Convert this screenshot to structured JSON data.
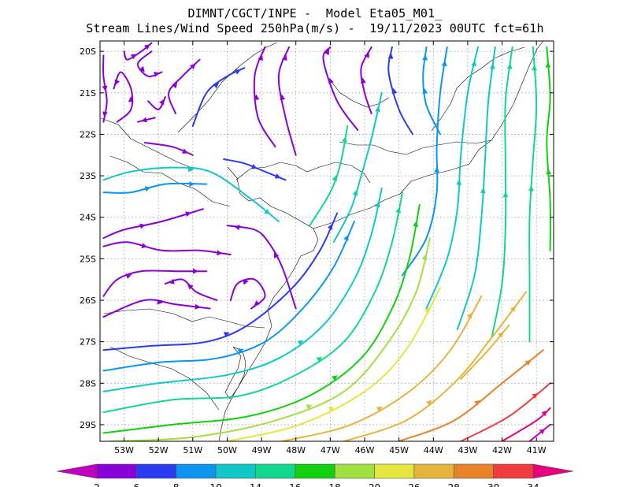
{
  "title_line1": "DIMNT/CGCT/INPE -  Model Eta05_M01_",
  "title_line2": "Stream Lines/Wind Speed 250hPa(m/s) -  19/11/2023 00UTC fct=61h",
  "chart_data": {
    "type": "streamline",
    "title": "Stream Lines/Wind Speed 250hPa(m/s) -  19/11/2023 00UTC fct=61h",
    "x_range": [
      -53.7,
      -40.5
    ],
    "y_range": [
      -29.4,
      -19.75
    ],
    "x_ticks": [
      -53,
      -52,
      -51,
      -50,
      -49,
      -48,
      -47,
      -46,
      -45,
      -44,
      -43,
      -42,
      -41
    ],
    "y_ticks": [
      -20,
      -21,
      -22,
      -23,
      -24,
      -25,
      -26,
      -27,
      -28,
      -29
    ],
    "x_tick_labels": [
      "53W",
      "52W",
      "51W",
      "50W",
      "49W",
      "48W",
      "47W",
      "46W",
      "45W",
      "44W",
      "43W",
      "42W",
      "41W"
    ],
    "y_tick_labels": [
      "20S",
      "21S",
      "22S",
      "23S",
      "24S",
      "25S",
      "26S",
      "27S",
      "28S",
      "29S"
    ],
    "grid": true,
    "colorbar": {
      "labels": [
        "2",
        "6",
        "8",
        "10",
        "14",
        "16",
        "18",
        "20",
        "26",
        "28",
        "30",
        "34"
      ],
      "colors": [
        "#bf00bf",
        "#8a00d6",
        "#2b3cf0",
        "#0a96f0",
        "#10c8c8",
        "#10d88c",
        "#10d010",
        "#a0e040",
        "#e6e640",
        "#e6b43c",
        "#e88228",
        "#f03c3c",
        "#e6007e"
      ]
    },
    "streamlines": [
      {
        "speed_class": 1,
        "points": [
          [
            -53.6,
            -20.1
          ],
          [
            -53.6,
            -20.6
          ],
          [
            -53.5,
            -21.2
          ],
          [
            -53.6,
            -21.7
          ]
        ]
      },
      {
        "speed_class": 1,
        "points": [
          [
            -53.2,
            -21.7
          ],
          [
            -52.8,
            -21.4
          ],
          [
            -52.8,
            -20.9
          ],
          [
            -53.1,
            -20.5
          ],
          [
            -53.3,
            -20.9
          ]
        ]
      },
      {
        "speed_class": 1,
        "points": [
          [
            -52.2,
            -20.0
          ],
          [
            -52.6,
            -20.3
          ],
          [
            -52.3,
            -20.6
          ],
          [
            -51.9,
            -20.5
          ]
        ]
      },
      {
        "speed_class": 1,
        "points": [
          [
            -52.3,
            -21.2
          ],
          [
            -52.0,
            -21.4
          ],
          [
            -51.8,
            -21.1
          ]
        ]
      },
      {
        "speed_class": 1,
        "points": [
          [
            -52.1,
            -21.6
          ],
          [
            -52.6,
            -21.7
          ]
        ]
      },
      {
        "speed_class": 1,
        "points": [
          [
            -52.4,
            -22.2
          ],
          [
            -51.6,
            -22.3
          ],
          [
            -51.0,
            -22.5
          ]
        ]
      },
      {
        "speed_class": 1,
        "points": [
          [
            -53.0,
            -20.0
          ],
          [
            -52.9,
            -20.2
          ],
          [
            -52.5,
            -20.0
          ],
          [
            -52.2,
            -19.8
          ]
        ]
      },
      {
        "speed_class": 1,
        "points": [
          [
            -51.5,
            -21.5
          ],
          [
            -51.7,
            -21.0
          ],
          [
            -51.3,
            -20.6
          ],
          [
            -50.8,
            -20.2
          ]
        ]
      },
      {
        "speed_class": 2,
        "points": [
          [
            -51.0,
            -21.8
          ],
          [
            -50.6,
            -21.0
          ],
          [
            -50.0,
            -20.6
          ],
          [
            -49.5,
            -20.4
          ]
        ]
      },
      {
        "speed_class": 1,
        "points": [
          [
            -48.6,
            -22.3
          ],
          [
            -49.1,
            -21.6
          ],
          [
            -49.2,
            -20.6
          ],
          [
            -48.9,
            -19.9
          ]
        ]
      },
      {
        "speed_class": 1,
        "points": [
          [
            -48.0,
            -22.5
          ],
          [
            -48.3,
            -21.6
          ],
          [
            -48.5,
            -20.6
          ],
          [
            -48.2,
            -19.9
          ]
        ]
      },
      {
        "speed_class": 1,
        "points": [
          [
            -46.2,
            -21.9
          ],
          [
            -46.8,
            -21.2
          ],
          [
            -47.2,
            -20.2
          ],
          [
            -47.0,
            -19.9
          ]
        ]
      },
      {
        "speed_class": 1,
        "points": [
          [
            -45.8,
            -21.5
          ],
          [
            -46.0,
            -21.0
          ],
          [
            -46.1,
            -20.4
          ],
          [
            -45.8,
            -19.9
          ]
        ]
      },
      {
        "speed_class": 2,
        "points": [
          [
            -44.6,
            -22.0
          ],
          [
            -45.0,
            -21.4
          ],
          [
            -45.3,
            -20.5
          ],
          [
            -45.2,
            -19.9
          ]
        ]
      },
      {
        "speed_class": 3,
        "points": [
          [
            -43.8,
            -22.0
          ],
          [
            -44.2,
            -21.3
          ],
          [
            -44.3,
            -20.6
          ],
          [
            -44.2,
            -19.9
          ]
        ]
      },
      {
        "speed_class": 3,
        "points": [
          [
            -44.9,
            -25.4
          ],
          [
            -44.2,
            -24.5
          ],
          [
            -43.9,
            -23.4
          ],
          [
            -43.9,
            -22.3
          ],
          [
            -43.8,
            -21.0
          ],
          [
            -43.6,
            -19.9
          ]
        ]
      },
      {
        "speed_class": 4,
        "points": [
          [
            -44.2,
            -26.2
          ],
          [
            -43.6,
            -25.0
          ],
          [
            -43.3,
            -23.8
          ],
          [
            -43.2,
            -22.5
          ],
          [
            -43.0,
            -21.0
          ],
          [
            -42.7,
            -19.9
          ]
        ]
      },
      {
        "speed_class": 4,
        "points": [
          [
            -43.3,
            -26.7
          ],
          [
            -42.8,
            -25.4
          ],
          [
            -42.6,
            -24.0
          ],
          [
            -42.5,
            -22.7
          ],
          [
            -42.4,
            -21.2
          ],
          [
            -42.2,
            -19.9
          ]
        ]
      },
      {
        "speed_class": 5,
        "points": [
          [
            -42.3,
            -26.9
          ],
          [
            -42.0,
            -25.6
          ],
          [
            -41.9,
            -24.2
          ],
          [
            -41.9,
            -22.7
          ],
          [
            -41.9,
            -21.2
          ],
          [
            -41.7,
            -19.9
          ]
        ]
      },
      {
        "speed_class": 5,
        "points": [
          [
            -41.2,
            -27.0
          ],
          [
            -41.2,
            -25.6
          ],
          [
            -41.2,
            -24.0
          ],
          [
            -41.1,
            -22.6
          ],
          [
            -41.0,
            -21.3
          ],
          [
            -41.1,
            -19.9
          ]
        ]
      },
      {
        "speed_class": 6,
        "points": [
          [
            -40.6,
            -24.8
          ],
          [
            -40.6,
            -23.6
          ],
          [
            -40.7,
            -22.2
          ],
          [
            -40.6,
            -21.1
          ],
          [
            -40.7,
            -19.9
          ]
        ]
      },
      {
        "speed_class": 2,
        "points": [
          [
            -50.1,
            -22.6
          ],
          [
            -49.5,
            -22.7
          ],
          [
            -48.9,
            -22.9
          ],
          [
            -48.3,
            -23.1
          ]
        ]
      },
      {
        "speed_class": 4,
        "points": [
          [
            -53.6,
            -23.1
          ],
          [
            -52.8,
            -22.9
          ],
          [
            -51.6,
            -22.8
          ],
          [
            -50.5,
            -22.9
          ],
          [
            -49.4,
            -23.5
          ],
          [
            -48.5,
            -24.1
          ]
        ]
      },
      {
        "speed_class": 3,
        "points": [
          [
            -53.6,
            -23.4
          ],
          [
            -52.8,
            -23.4
          ],
          [
            -51.8,
            -23.2
          ],
          [
            -50.6,
            -23.2
          ]
        ]
      },
      {
        "speed_class": 1,
        "points": [
          [
            -53.6,
            -24.7
          ],
          [
            -52.9,
            -24.6
          ],
          [
            -51.9,
            -24.8
          ],
          [
            -50.8,
            -24.8
          ],
          [
            -49.9,
            -24.9
          ]
        ]
      },
      {
        "speed_class": 1,
        "points": [
          [
            -53.6,
            -25.9
          ],
          [
            -53.2,
            -25.5
          ],
          [
            -52.5,
            -25.3
          ],
          [
            -51.5,
            -25.3
          ],
          [
            -50.6,
            -25.3
          ]
        ]
      },
      {
        "speed_class": 1,
        "points": [
          [
            -50.3,
            -26.0
          ],
          [
            -50.9,
            -25.8
          ],
          [
            -51.3,
            -25.5
          ],
          [
            -51.8,
            -25.6
          ]
        ]
      },
      {
        "speed_class": 1,
        "points": [
          [
            -49.9,
            -26.0
          ],
          [
            -49.7,
            -25.6
          ],
          [
            -49.2,
            -25.5
          ],
          [
            -48.9,
            -25.9
          ],
          [
            -49.3,
            -26.2
          ]
        ]
      },
      {
        "speed_class": 1,
        "points": [
          [
            -48.0,
            -26.2
          ],
          [
            -48.4,
            -25.2
          ],
          [
            -48.8,
            -24.6
          ],
          [
            -49.2,
            -24.3
          ],
          [
            -50.0,
            -24.2
          ]
        ]
      },
      {
        "speed_class": 1,
        "points": [
          [
            -53.6,
            -26.4
          ],
          [
            -52.4,
            -26.0
          ],
          [
            -51.5,
            -26.1
          ],
          [
            -50.5,
            -26.2
          ]
        ]
      },
      {
        "speed_class": 1,
        "points": [
          [
            -53.6,
            -24.5
          ],
          [
            -53.0,
            -24.3
          ],
          [
            -51.9,
            -24.1
          ],
          [
            -50.7,
            -23.8
          ]
        ]
      },
      {
        "speed_class": 2,
        "points": [
          [
            -53.6,
            -27.2
          ],
          [
            -52.2,
            -27.1
          ],
          [
            -50.6,
            -27.0
          ],
          [
            -49.4,
            -26.6
          ],
          [
            -48.1,
            -25.7
          ],
          [
            -47.3,
            -24.8
          ],
          [
            -46.8,
            -23.9
          ]
        ]
      },
      {
        "speed_class": 3,
        "points": [
          [
            -53.6,
            -27.7
          ],
          [
            -52.0,
            -27.5
          ],
          [
            -50.3,
            -27.4
          ],
          [
            -48.9,
            -27.0
          ],
          [
            -47.8,
            -26.2
          ],
          [
            -46.9,
            -25.2
          ],
          [
            -46.3,
            -24.1
          ]
        ]
      },
      {
        "speed_class": 4,
        "points": [
          [
            -53.6,
            -28.2
          ],
          [
            -52.0,
            -28.0
          ],
          [
            -50.0,
            -27.8
          ],
          [
            -48.5,
            -27.4
          ],
          [
            -47.2,
            -26.6
          ],
          [
            -46.3,
            -25.5
          ],
          [
            -45.8,
            -24.4
          ],
          [
            -45.5,
            -23.3
          ]
        ]
      },
      {
        "speed_class": 5,
        "points": [
          [
            -53.6,
            -28.7
          ],
          [
            -51.6,
            -28.4
          ],
          [
            -49.6,
            -28.3
          ],
          [
            -48.0,
            -27.8
          ],
          [
            -46.6,
            -27.0
          ],
          [
            -45.7,
            -25.8
          ],
          [
            -45.2,
            -24.6
          ],
          [
            -44.9,
            -23.4
          ]
        ]
      },
      {
        "speed_class": 6,
        "points": [
          [
            -53.6,
            -29.2
          ],
          [
            -51.6,
            -29.0
          ],
          [
            -49.4,
            -28.8
          ],
          [
            -47.6,
            -28.3
          ],
          [
            -46.1,
            -27.4
          ],
          [
            -45.2,
            -26.2
          ],
          [
            -44.7,
            -25.0
          ],
          [
            -44.4,
            -23.7
          ]
        ]
      },
      {
        "speed_class": 7,
        "points": [
          [
            -53.4,
            -29.4
          ],
          [
            -51.0,
            -29.3
          ],
          [
            -48.6,
            -28.9
          ],
          [
            -46.6,
            -28.2
          ],
          [
            -45.3,
            -27.0
          ],
          [
            -44.5,
            -25.8
          ],
          [
            -44.1,
            -24.5
          ]
        ]
      },
      {
        "speed_class": 8,
        "points": [
          [
            -50.0,
            -29.4
          ],
          [
            -47.9,
            -29.0
          ],
          [
            -46.0,
            -28.2
          ],
          [
            -44.8,
            -27.2
          ],
          [
            -43.8,
            -25.7
          ]
        ]
      },
      {
        "speed_class": 9,
        "points": [
          [
            -48.4,
            -29.4
          ],
          [
            -46.4,
            -29.0
          ],
          [
            -44.7,
            -28.2
          ],
          [
            -43.5,
            -27.2
          ],
          [
            -42.6,
            -25.9
          ]
        ]
      },
      {
        "speed_class": 9,
        "points": [
          [
            -46.6,
            -29.4
          ],
          [
            -44.8,
            -28.9
          ],
          [
            -43.4,
            -28.0
          ],
          [
            -42.3,
            -26.9
          ],
          [
            -41.3,
            -25.8
          ]
        ]
      },
      {
        "speed_class": 10,
        "points": [
          [
            -45.0,
            -29.4
          ],
          [
            -43.4,
            -28.9
          ],
          [
            -42.0,
            -28.0
          ],
          [
            -40.8,
            -27.2
          ]
        ]
      },
      {
        "speed_class": 11,
        "points": [
          [
            -43.2,
            -29.4
          ],
          [
            -41.8,
            -28.8
          ],
          [
            -40.6,
            -28.0
          ]
        ]
      },
      {
        "speed_class": 12,
        "points": [
          [
            -42.0,
            -29.4
          ],
          [
            -41.0,
            -28.9
          ],
          [
            -40.6,
            -28.6
          ]
        ]
      },
      {
        "speed_class": 13,
        "points": [
          [
            -41.2,
            -29.4
          ],
          [
            -40.6,
            -29.0
          ]
        ]
      },
      {
        "speed_class": 9,
        "points": [
          [
            -43.2,
            -27.9
          ],
          [
            -42.4,
            -27.2
          ],
          [
            -41.8,
            -26.6
          ]
        ]
      },
      {
        "speed_class": 5,
        "points": [
          [
            -47.6,
            -24.2
          ],
          [
            -47.0,
            -23.4
          ],
          [
            -46.7,
            -22.7
          ],
          [
            -46.5,
            -21.8
          ]
        ]
      },
      {
        "speed_class": 4,
        "points": [
          [
            -46.9,
            -24.6
          ],
          [
            -46.4,
            -23.8
          ],
          [
            -46.1,
            -23.0
          ],
          [
            -45.8,
            -22.1
          ],
          [
            -45.5,
            -21.0
          ]
        ]
      }
    ]
  }
}
